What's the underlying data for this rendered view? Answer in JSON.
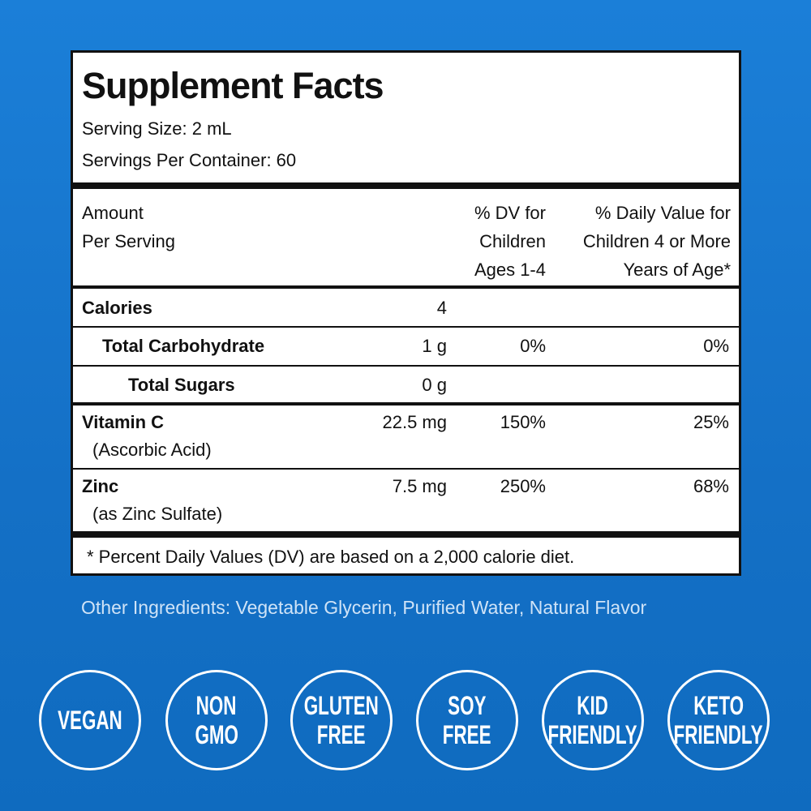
{
  "title": "Supplement Facts",
  "serving_size": "Serving Size: 2 mL",
  "servings_per_container": "Servings Per Container: 60",
  "header": {
    "amount": [
      "Amount",
      "Per Serving"
    ],
    "dv_children_1_4": [
      "% DV for",
      "Children",
      "Ages 1-4"
    ],
    "dv_children_4_plus": [
      "% Daily Value for",
      "Children 4 or More",
      "Years of Age*"
    ]
  },
  "rows": [
    {
      "name": "Calories",
      "amount": "4",
      "dv1": "",
      "dv2": ""
    },
    {
      "name": "Total Carbohydrate",
      "amount": "1 g",
      "dv1": "0%",
      "dv2": "0%"
    },
    {
      "name": "Total Sugars",
      "amount": "0 g",
      "dv1": "",
      "dv2": ""
    },
    {
      "name": "Vitamin C",
      "sub": "(Ascorbic Acid)",
      "amount": "22.5 mg",
      "dv1": "150%",
      "dv2": "25%"
    },
    {
      "name": "Zinc",
      "sub": "(as Zinc Sulfate)",
      "amount": "7.5 mg",
      "dv1": "250%",
      "dv2": "68%"
    }
  ],
  "footnote": "* Percent Daily Values (DV) are based on a 2,000 calorie diet.",
  "other_ingredients": "Other Ingredients:  Vegetable Glycerin, Purified Water, Natural Flavor",
  "badges": [
    [
      "VEGAN"
    ],
    [
      "NON",
      "GMO"
    ],
    [
      "GLUTEN",
      "FREE"
    ],
    [
      "SOY",
      "FREE"
    ],
    [
      "KID",
      "FRIENDLY"
    ],
    [
      "KETO",
      "FRIENDLY"
    ]
  ],
  "colors": {
    "background": "#1470c6",
    "panel": "#ffffff",
    "rule": "#111111"
  }
}
